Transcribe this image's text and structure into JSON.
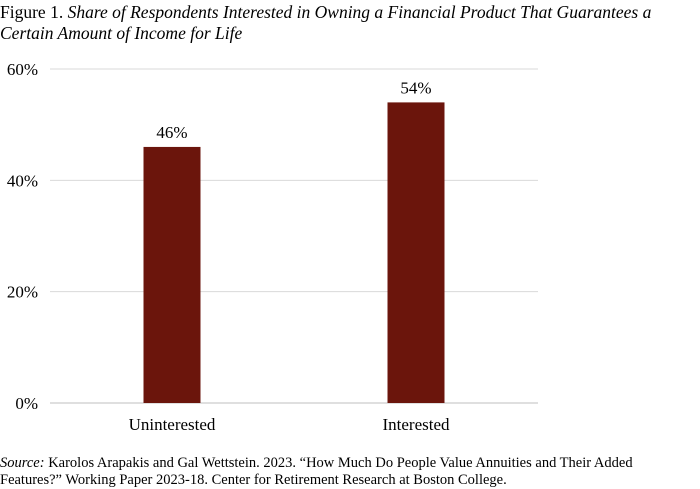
{
  "figure": {
    "label": "Figure 1.",
    "title": "Share of Respondents Interested in Owning a Financial Product That Guarantees a Certain Amount of Income for Life"
  },
  "source": {
    "label": "Source:",
    "text": "Karolos Arapakis and Gal Wettstein. 2023. “How Much Do People Value Annuities and Their Added Features?” Working Paper 2023-18. Center for Retirement Research at Boston College."
  },
  "chart_data": {
    "type": "bar",
    "categories": [
      "Uninterested",
      "Interested"
    ],
    "values": [
      46,
      54
    ],
    "data_labels": [
      "46%",
      "54%"
    ],
    "title": "",
    "xlabel": "",
    "ylabel": "",
    "ylim": [
      0,
      60
    ],
    "yticks": [
      0,
      20,
      40,
      60
    ],
    "ytick_labels": [
      "0%",
      "20%",
      "40%",
      "60%"
    ],
    "grid": true,
    "legend": "none",
    "colors": {
      "bar": "#6b150c",
      "grid": "#d9d9d9",
      "axis": "#bfbfbf"
    }
  }
}
